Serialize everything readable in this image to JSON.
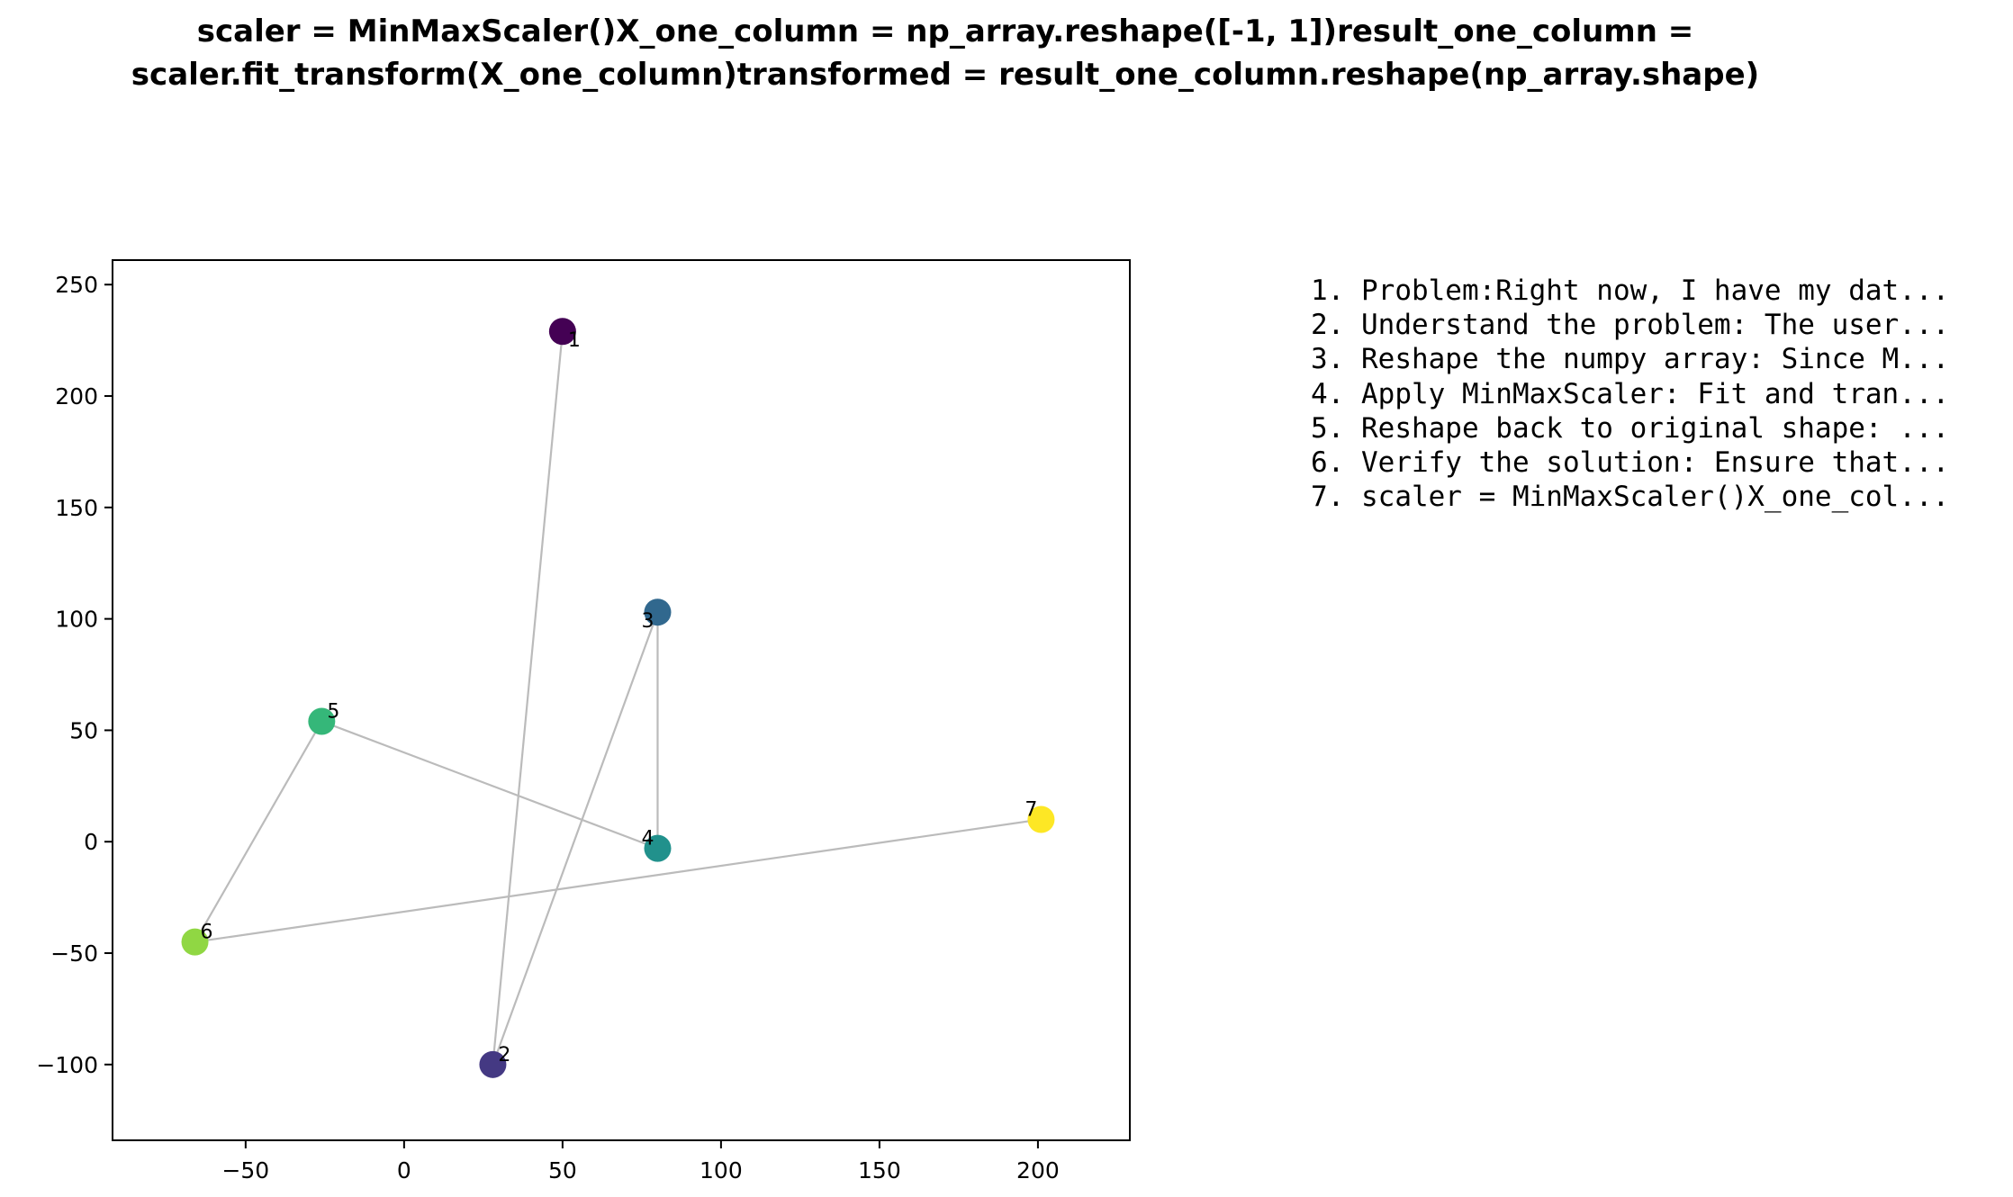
{
  "title_lines": [
    "scaler = MinMaxScaler()X_one_column = np_array.reshape([-1, 1])result_one_column =",
    "scaler.fit_transform(X_one_column)transformed = result_one_column.reshape(np_array.shape)"
  ],
  "steps": [
    "1. Problem:Right now, I have my dat...",
    "2. Understand the problem: The user...",
    "3. Reshape the numpy array: Since M...",
    "4. Apply MinMaxScaler: Fit and tran...",
    "5. Reshape back to original shape: ...",
    "6. Verify the solution: Ensure that...",
    "7. scaler = MinMaxScaler()X_one_col..."
  ],
  "chart_data": {
    "type": "scatter",
    "title": "scaler = MinMaxScaler()X_one_column = np_array.reshape([-1, 1])result_one_column = scaler.fit_transform(X_one_column)transformed = result_one_column.reshape(np_array.shape)",
    "xlabel": "",
    "ylabel": "",
    "xlim": [
      -92,
      229
    ],
    "ylim": [
      -134,
      261
    ],
    "xticks": [
      -50,
      0,
      50,
      100,
      150,
      200
    ],
    "yticks": [
      -100,
      -50,
      0,
      50,
      100,
      150,
      200,
      250
    ],
    "grid": false,
    "connect_in_order": true,
    "line_color": "#bbbbbb",
    "points": [
      {
        "label": "1",
        "x": 50,
        "y": 229,
        "color": "#440154"
      },
      {
        "label": "2",
        "x": 28,
        "y": -100,
        "color": "#443983"
      },
      {
        "label": "3",
        "x": 80,
        "y": 103,
        "color": "#31688e"
      },
      {
        "label": "4",
        "x": 80,
        "y": -3,
        "color": "#21918c"
      },
      {
        "label": "5",
        "x": -26,
        "y": 54,
        "color": "#35b779"
      },
      {
        "label": "6",
        "x": -66,
        "y": -45,
        "color": "#90d743"
      },
      {
        "label": "7",
        "x": 201,
        "y": 10,
        "color": "#fde725"
      }
    ]
  }
}
